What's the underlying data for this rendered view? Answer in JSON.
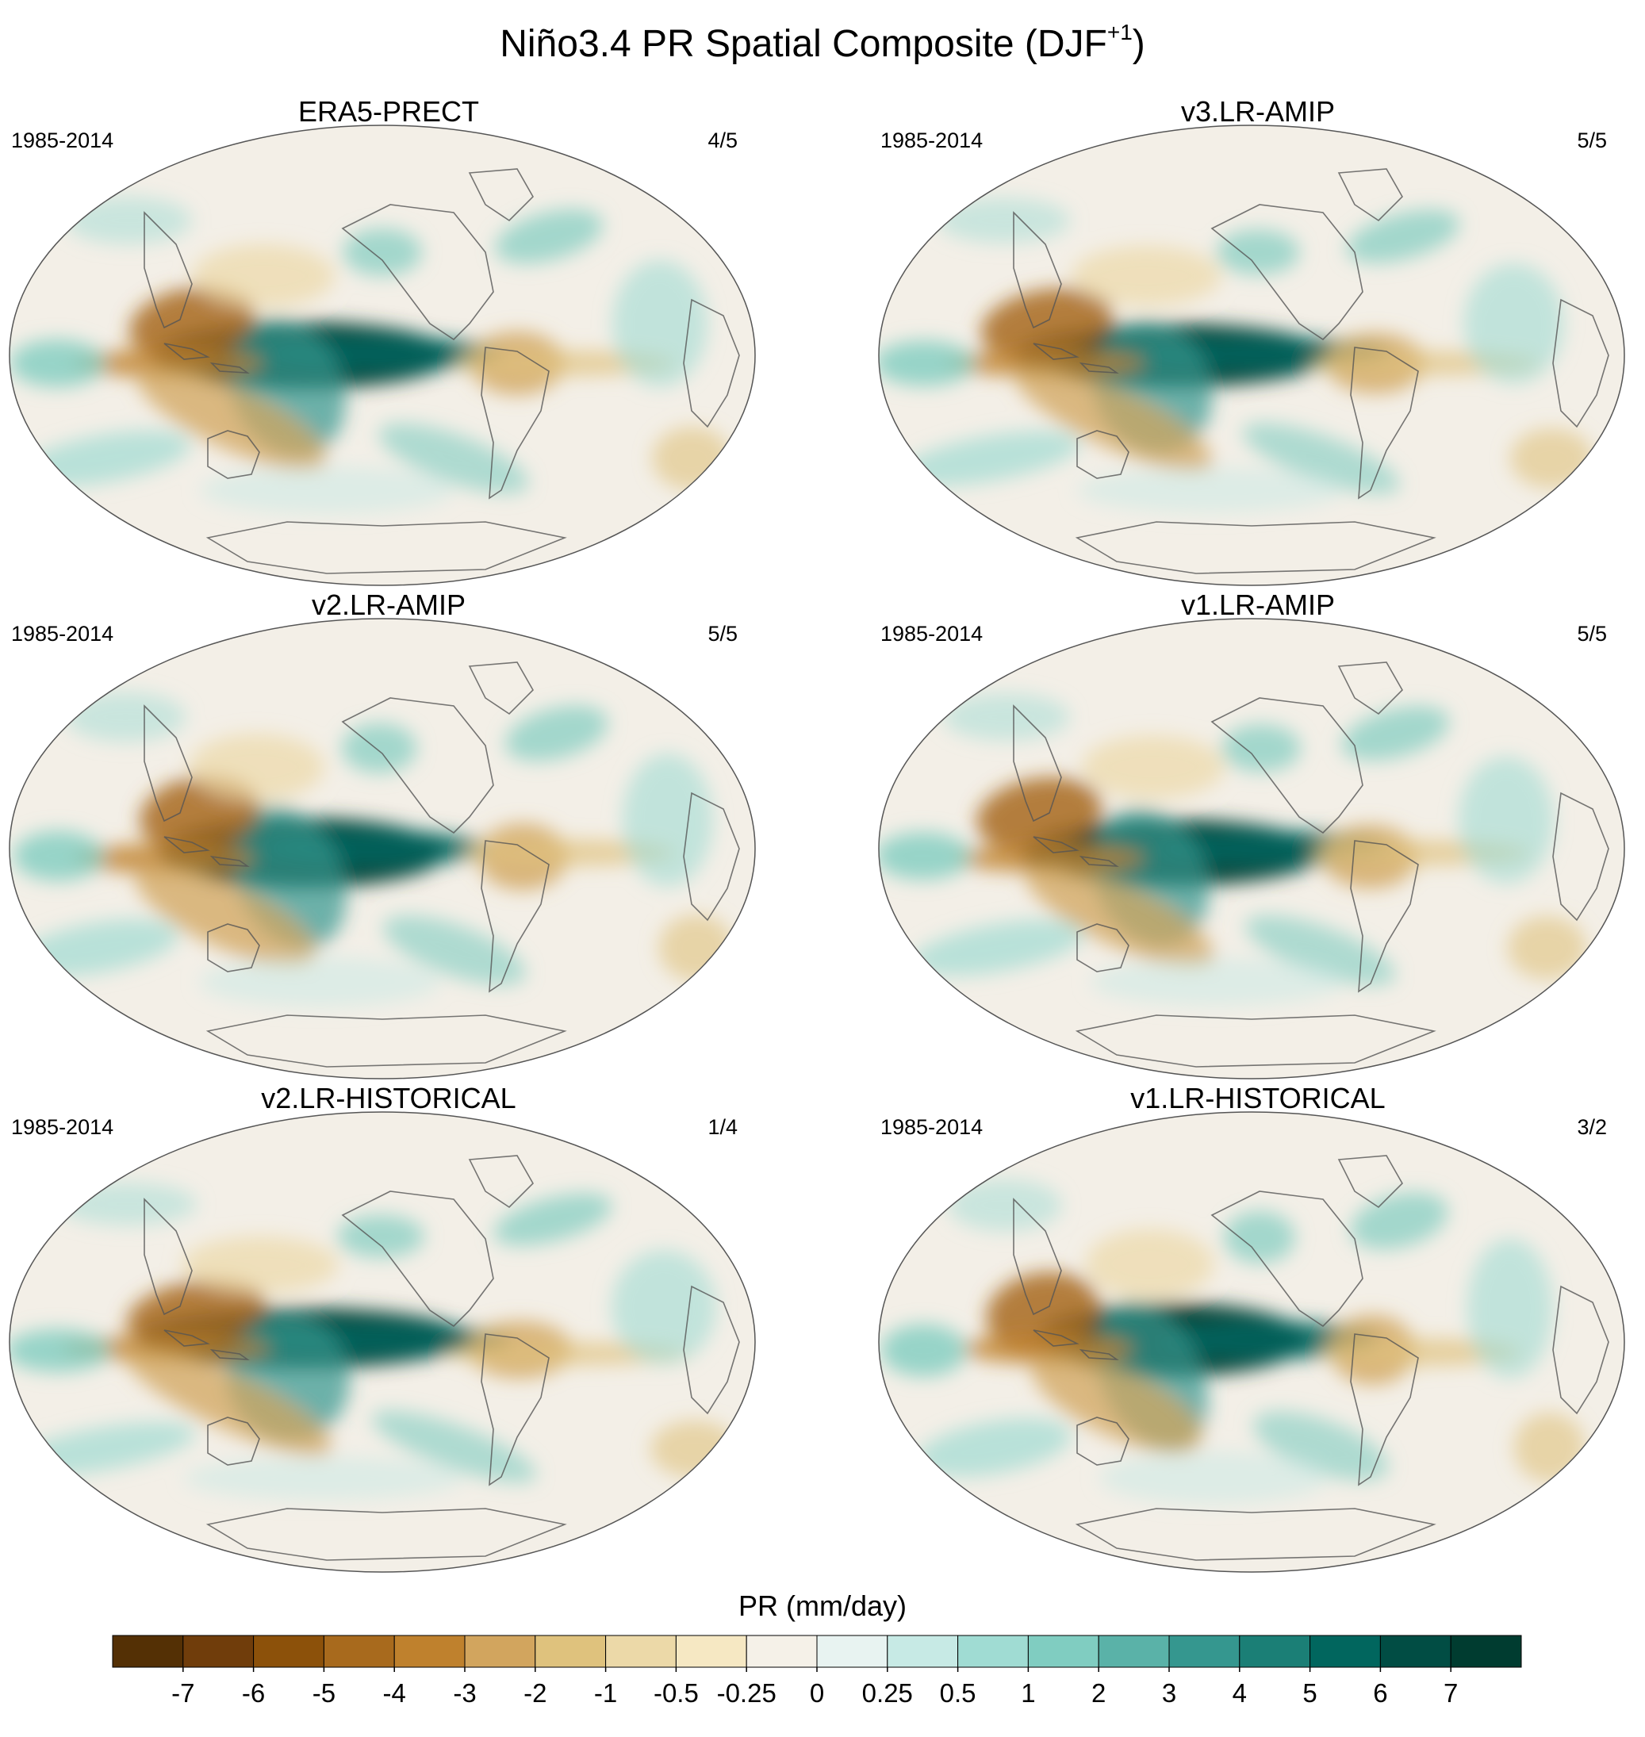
{
  "title": "Niño3.4 PR Spatial Composite (DJF",
  "title_sup": "+1",
  "title_close": ")",
  "panels": [
    {
      "name": "ERA5-PRECT",
      "period": "1985-2014",
      "ratio": "4/5"
    },
    {
      "name": "v3.LR-AMIP",
      "period": "1985-2014",
      "ratio": "5/5"
    },
    {
      "name": "v2.LR-AMIP",
      "period": "1985-2014",
      "ratio": "5/5"
    },
    {
      "name": "v1.LR-AMIP",
      "period": "1985-2014",
      "ratio": "5/5"
    },
    {
      "name": "v2.LR-HISTORICAL",
      "period": "1985-2014",
      "ratio": "1/4"
    },
    {
      "name": "v1.LR-HISTORICAL",
      "period": "1985-2014",
      "ratio": "3/2"
    }
  ],
  "colorbar": {
    "label": "PR (mm/day)",
    "ticks": [
      "-7",
      "-6",
      "-5",
      "-4",
      "-3",
      "-2",
      "-1",
      "-0.5",
      "-0.25",
      "0",
      "0.25",
      "0.5",
      "1",
      "2",
      "3",
      "4",
      "5",
      "6",
      "7"
    ],
    "colors": [
      "#543005",
      "#703d0b",
      "#8c510a",
      "#a86a1d",
      "#bf812d",
      "#d2a55e",
      "#dfc27d",
      "#ecd9a8",
      "#f6e8c3",
      "#f5f1e8",
      "#e8f3f1",
      "#c7eae5",
      "#a0dcd3",
      "#80cdc1",
      "#5ab2a8",
      "#35978f",
      "#1b7f76",
      "#01665e",
      "#014d44",
      "#003c30"
    ]
  },
  "map_colors": {
    "background": "#f3efe7",
    "coast": "#555555"
  }
}
